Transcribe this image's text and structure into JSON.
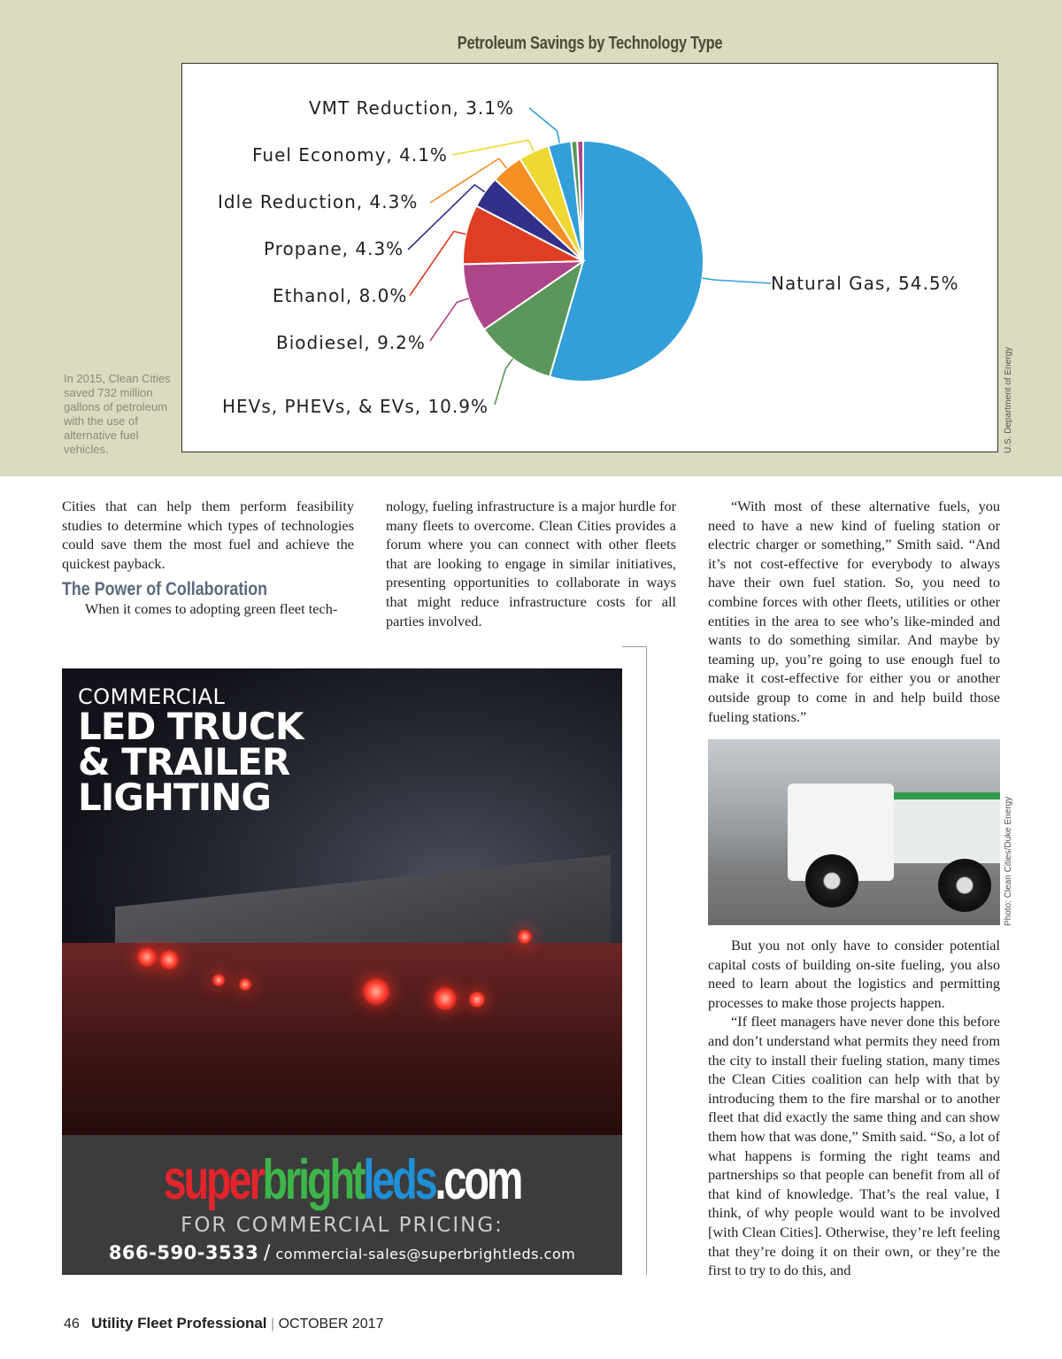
{
  "chart_data": {
    "type": "pie",
    "title": "Petroleum Savings by Technology Type",
    "start": "top",
    "direction": "clockwise",
    "slices": [
      {
        "label": "Natural Gas, 54.5%",
        "value": 54.5,
        "color": "#329fd9"
      },
      {
        "label": "HEVs, PHEVs, & EVs, 10.9%",
        "value": 10.9,
        "color": "#5b975a"
      },
      {
        "label": "Biodiesel, 9.2%",
        "value": 9.2,
        "color": "#ad4589"
      },
      {
        "label": "Ethanol, 8.0%",
        "value": 8.0,
        "color": "#e03e24"
      },
      {
        "label": "Propane, 4.3%",
        "value": 4.3,
        "color": "#33308a"
      },
      {
        "label": "Idle Reduction, 4.3%",
        "value": 4.3,
        "color": "#f48f24"
      },
      {
        "label": "Fuel Economy, 4.1%",
        "value": 4.1,
        "color": "#eed832"
      },
      {
        "label": "VMT Reduction, 3.1%",
        "value": 3.1,
        "color": "#329fd9"
      },
      {
        "label": "",
        "value": 0.8,
        "color": "#5b975a"
      },
      {
        "label": "",
        "value": 0.8,
        "color": "#ad4589"
      }
    ]
  },
  "chart_caption": "In 2015, Clean Cities saved 732 million gallons of petroleum with the use of alternative fuel vehicles.",
  "chart_credit": "U.S. Department of Energy",
  "article": {
    "col1_p1": "Cities that can help them perform feasibility studies to determine which types of technologies could save them the most fuel and achieve the quickest payback.",
    "heading": "The Power of Collaboration",
    "col1_p2": "When it comes to adopting green fleet tech-",
    "col2_p1": "nology, fueling infrastructure is a major hurdle for many fleets to overcome. Clean Cities provides a forum where you can connect with other fleets that are looking to engage in similar initiatives, presenting opportunities to collaborate in ways that might reduce infrastructure costs for all parties involved.",
    "col3_p1": "“With most of these alternative fuels, you need to have a new kind of fueling station or electric charger or something,” Smith said. “And it’s not cost-effective for everybody to always have their own fuel station. So, you need to combine forces with other fleets, utilities or other entities in the area to see who’s like-minded and wants to do something similar. And maybe by teaming up, you’re going to use enough fuel to make it cost-effective for either you or another outside group to come in and help build those fueling stations.”",
    "col3_p2": "But you not only have to consider potential capital costs of building on-site fueling, you also need to learn about the logistics and permitting processes to make those projects happen.",
    "col3_p3": "“If fleet managers have never done this before and don’t understand what permits they need from the city to install their fueling station, many times the Clean Cities coalition can help with that by introducing them to the fire marshal or to another fleet that did exactly the same thing and can show them how that was done,” Smith said. “So, a lot of what happens is forming the right teams and partnerships so that people can benefit from all of that kind of knowledge. That’s the real value, I think, of why people would want to be involved [with Clean Cities]. Otherwise, they’re left feeling that they’re doing it on their own, or they’re the first to try to do this, and"
  },
  "photo_credit": "Photo: Clean Cities/Duke Energy",
  "ad": {
    "kicker": "COMMERCIAL",
    "headline": [
      "LED TRUCK",
      "& TRAILER",
      "LIGHTING"
    ],
    "logo": [
      "super",
      "bright",
      "leds",
      ".com"
    ],
    "logo_colors": [
      "#e3242b",
      "#3db54a",
      "#1f8fd6",
      "#ffffff"
    ],
    "pricing": "FOR COMMERCIAL PRICING:",
    "phone": "866-590-3533",
    "separator": "/",
    "email": "commercial-sales@superbrightleds.com"
  },
  "footer": {
    "page": "46",
    "magazine": "Utility Fleet Professional",
    "sep": "|",
    "issue": "OCTOBER 2017"
  }
}
